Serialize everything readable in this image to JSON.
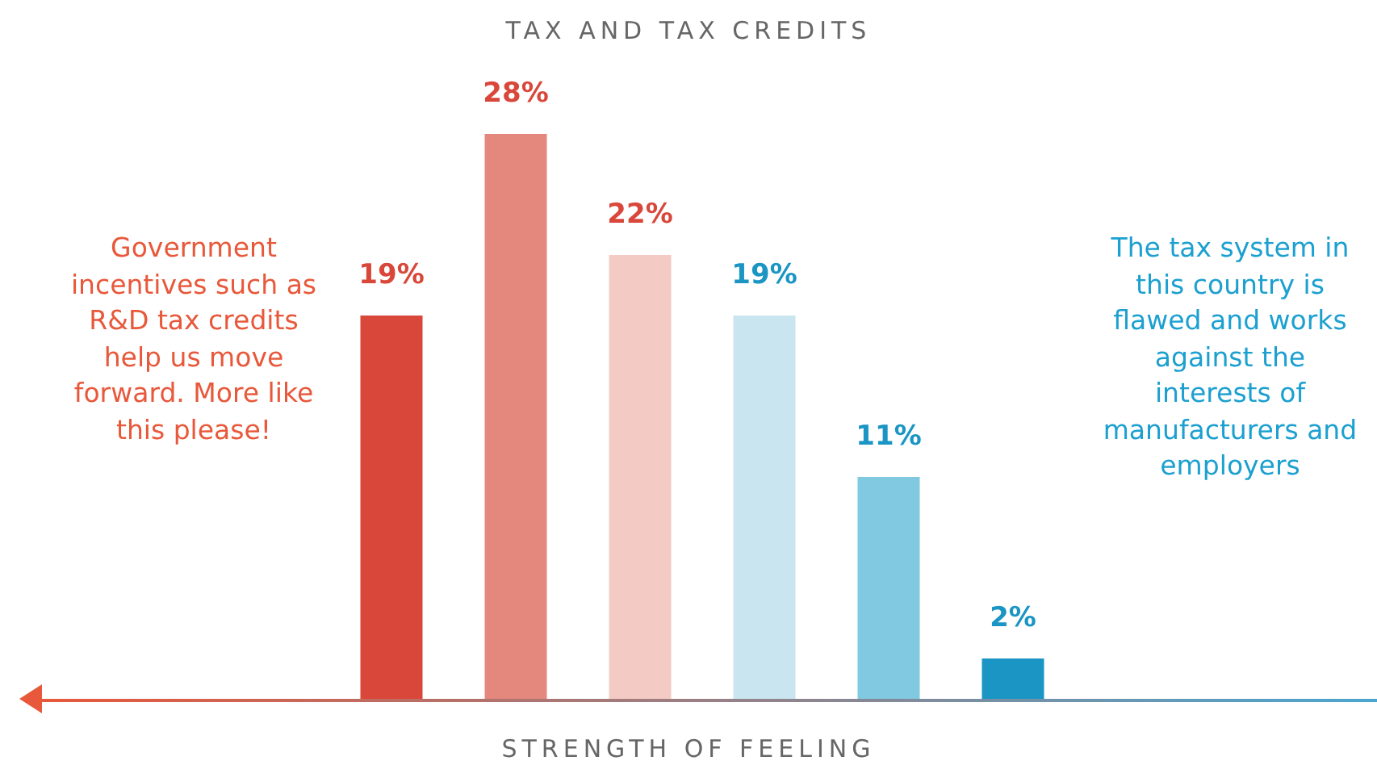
{
  "chart_data": {
    "type": "bar",
    "title": "TAX AND TAX CREDITS",
    "xlabel": "STRENGTH OF FEELING",
    "categories": [
      null,
      null,
      null,
      null,
      null,
      null
    ],
    "values": [
      19,
      28,
      22,
      19,
      11,
      2
    ],
    "value_labels": [
      "19%",
      "28%",
      "22%",
      "19%",
      "11%",
      "2%"
    ],
    "colors": [
      "#d9473a",
      "#e4877c",
      "#f3cbc4",
      "#c9e5ef",
      "#80c9e0",
      "#1a95c4"
    ],
    "annotations": [
      "Government incentives such as R&D tax credits help us move forward. More like this please!",
      "The tax system in this country is flawed and works against the interests of manufacturers and employers"
    ],
    "grid": false,
    "legend": false,
    "tick_labels": false
  }
}
